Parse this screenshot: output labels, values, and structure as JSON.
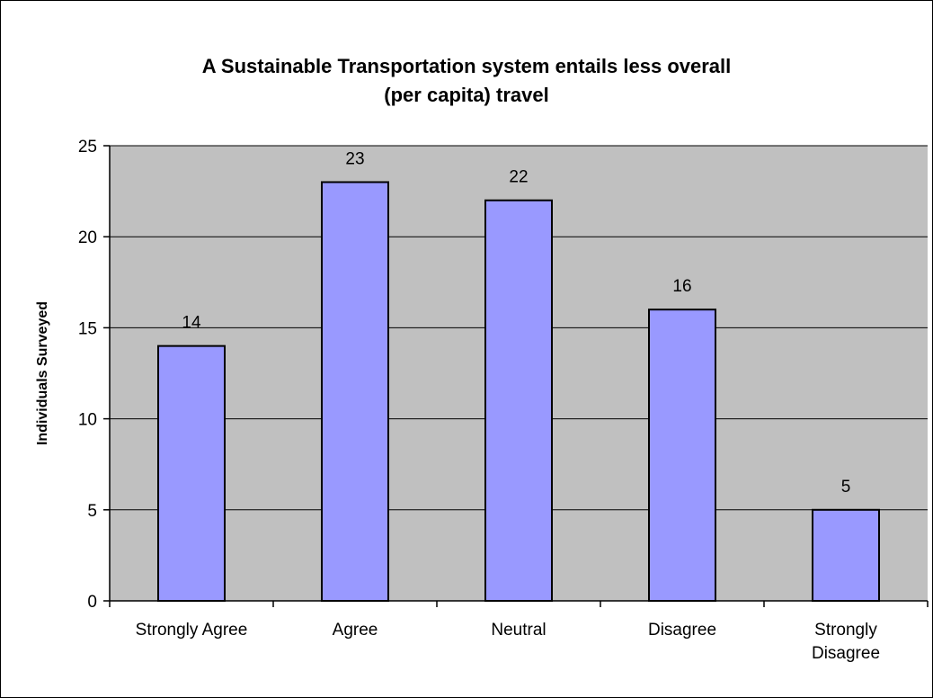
{
  "chart_data": {
    "type": "bar",
    "title_lines": [
      "A Sustainable Transportation system entails less overall",
      "(per capita) travel"
    ],
    "categories": [
      "Strongly Agree",
      "Agree",
      "Neutral",
      "Disagree",
      "Strongly Disagree"
    ],
    "category_label_lines": [
      [
        "Strongly Agree"
      ],
      [
        "Agree"
      ],
      [
        "Neutral"
      ],
      [
        "Disagree"
      ],
      [
        "Strongly",
        "Disagree"
      ]
    ],
    "values": [
      14,
      23,
      22,
      16,
      5
    ],
    "xlabel": "",
    "ylabel": "Individuals Surveyed",
    "ylim": [
      0,
      25
    ],
    "yticks": [
      0,
      5,
      10,
      15,
      20,
      25
    ],
    "grid": true,
    "legend": "none",
    "data_labels": true,
    "colors": {
      "bar_fill": "#9999ff",
      "bar_stroke": "#000000",
      "plot_background": "#c0c0c0",
      "gridline": "#000000"
    }
  }
}
